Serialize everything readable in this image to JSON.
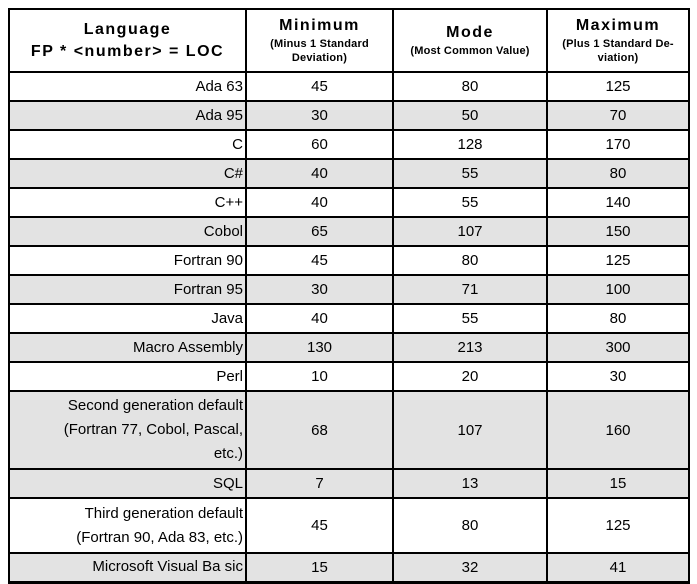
{
  "table": {
    "columns": [
      {
        "title_line1": "Language",
        "title_line2": "FP * <number> = LOC"
      },
      {
        "title": "Minimum",
        "subtitle": "(Minus 1 Standard Deviation)"
      },
      {
        "title": "Mode",
        "subtitle": "(Most Common Value)"
      },
      {
        "title": "Maximum",
        "subtitle": "(Plus 1 Standard De-viation)"
      }
    ],
    "rows": [
      {
        "language": "Ada 63",
        "minimum": 45,
        "mode": 80,
        "maximum": 125,
        "shaded": false,
        "size": "normal"
      },
      {
        "language": "Ada 95",
        "minimum": 30,
        "mode": 50,
        "maximum": 70,
        "shaded": true,
        "size": "normal"
      },
      {
        "language": "C",
        "minimum": 60,
        "mode": 128,
        "maximum": 170,
        "shaded": false,
        "size": "normal"
      },
      {
        "language": "C#",
        "minimum": 40,
        "mode": 55,
        "maximum": 80,
        "shaded": true,
        "size": "normal"
      },
      {
        "language": "C++",
        "minimum": 40,
        "mode": 55,
        "maximum": 140,
        "shaded": false,
        "size": "normal"
      },
      {
        "language": "Cobol",
        "minimum": 65,
        "mode": 107,
        "maximum": 150,
        "shaded": true,
        "size": "normal"
      },
      {
        "language": "Fortran 90",
        "minimum": 45,
        "mode": 80,
        "maximum": 125,
        "shaded": false,
        "size": "normal"
      },
      {
        "language": "Fortran 95",
        "minimum": 30,
        "mode": 71,
        "maximum": 100,
        "shaded": true,
        "size": "normal"
      },
      {
        "language": "Java",
        "minimum": 40,
        "mode": 55,
        "maximum": 80,
        "shaded": false,
        "size": "normal"
      },
      {
        "language": "Macro Assembly",
        "minimum": 130,
        "mode": 213,
        "maximum": 300,
        "shaded": true,
        "size": "normal"
      },
      {
        "language": "Perl",
        "minimum": 10,
        "mode": 20,
        "maximum": 30,
        "shaded": false,
        "size": "normal"
      },
      {
        "language": "Second generation default\n(Fortran 77, Cobol, Pascal,\netc.)",
        "minimum": 68,
        "mode": 107,
        "maximum": 160,
        "shaded": true,
        "size": "tall"
      },
      {
        "language": "SQL",
        "minimum": 7,
        "mode": 13,
        "maximum": 15,
        "shaded": true,
        "size": "normal"
      },
      {
        "language": "Third generation default\n(Fortran 90, Ada 83, etc.)",
        "minimum": 45,
        "mode": 80,
        "maximum": 125,
        "shaded": false,
        "size": "mid"
      },
      {
        "language": "Microsoft Visual Ba sic",
        "minimum": 15,
        "mode": 32,
        "maximum": 41,
        "shaded": true,
        "size": "normal"
      }
    ]
  },
  "colors": {
    "shaded_row": "#e3e3e3",
    "border": "#000000",
    "text": "#000000",
    "background": "#ffffff"
  }
}
